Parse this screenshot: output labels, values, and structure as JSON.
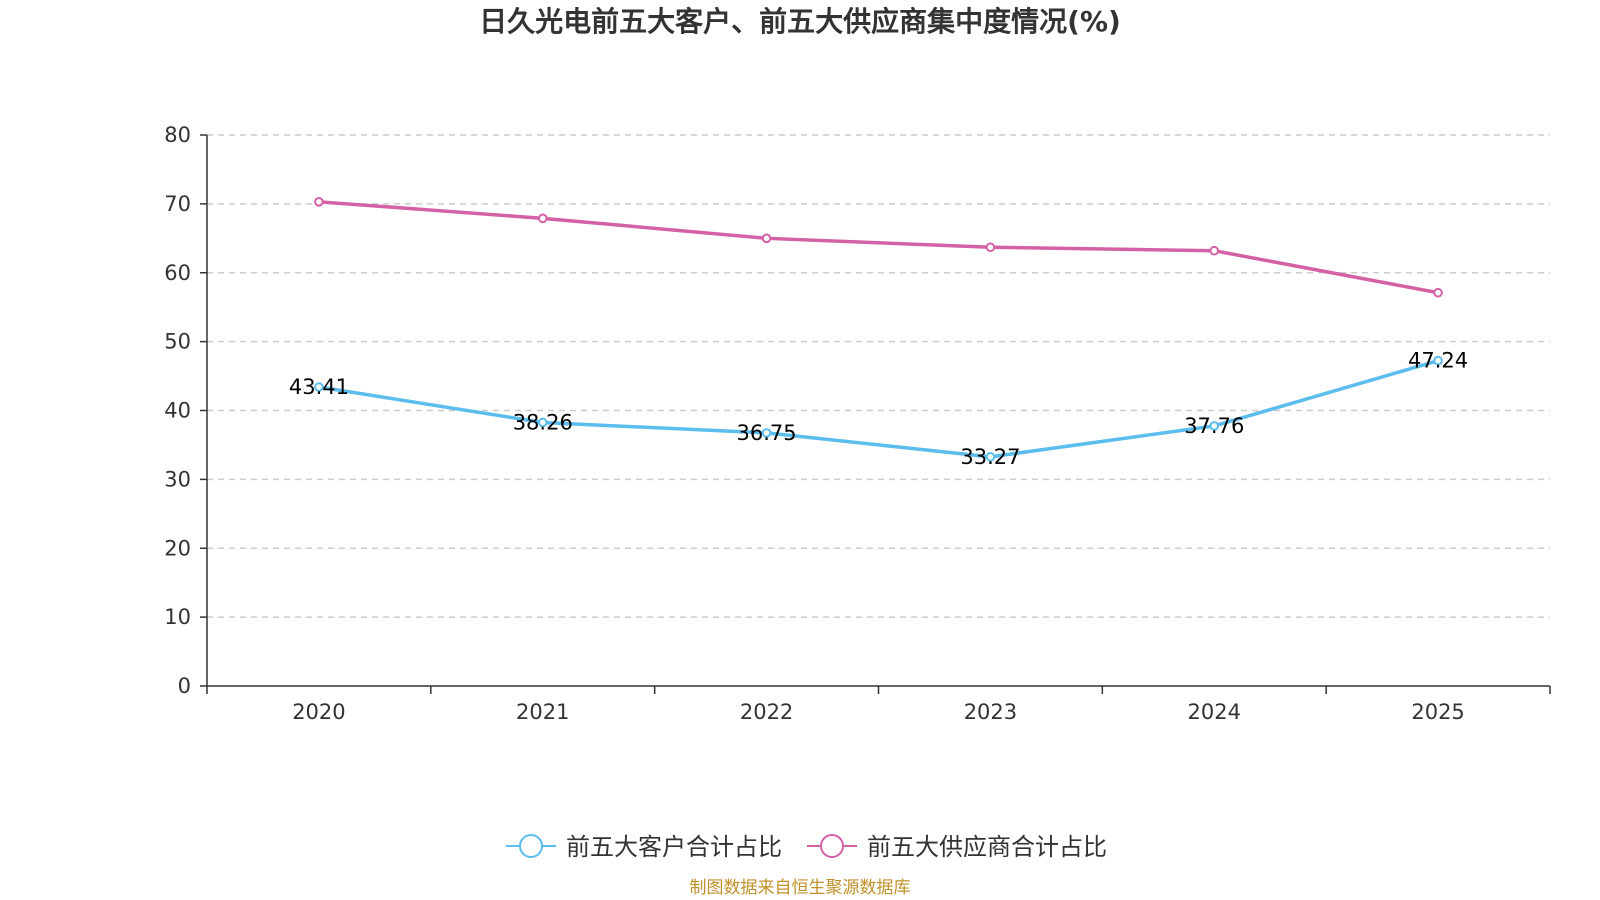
{
  "chart_data": {
    "type": "line",
    "title": "日久光电前五大客户、前五大供应商集中度情况(%)",
    "categories": [
      "2020",
      "2021",
      "2022",
      "2023",
      "2024",
      "2025"
    ],
    "ylim": [
      0,
      80
    ],
    "yticks": [
      0,
      10,
      20,
      30,
      40,
      50,
      60,
      70,
      80
    ],
    "grid": "horizontal dashed",
    "legend_position": "bottom",
    "series": [
      {
        "name": "前五大客户合计占比",
        "color": "#5bbcee",
        "values": [
          43.41,
          38.26,
          36.75,
          33.27,
          37.76,
          47.24
        ],
        "labels_shown": true
      },
      {
        "name": "前五大供应商合计占比",
        "color": "#d460a6",
        "values": [
          70.3,
          67.9,
          65.0,
          63.7,
          63.2,
          57.1
        ],
        "labels_shown": false
      }
    ],
    "source": "制图数据来自恒生聚源数据库"
  }
}
